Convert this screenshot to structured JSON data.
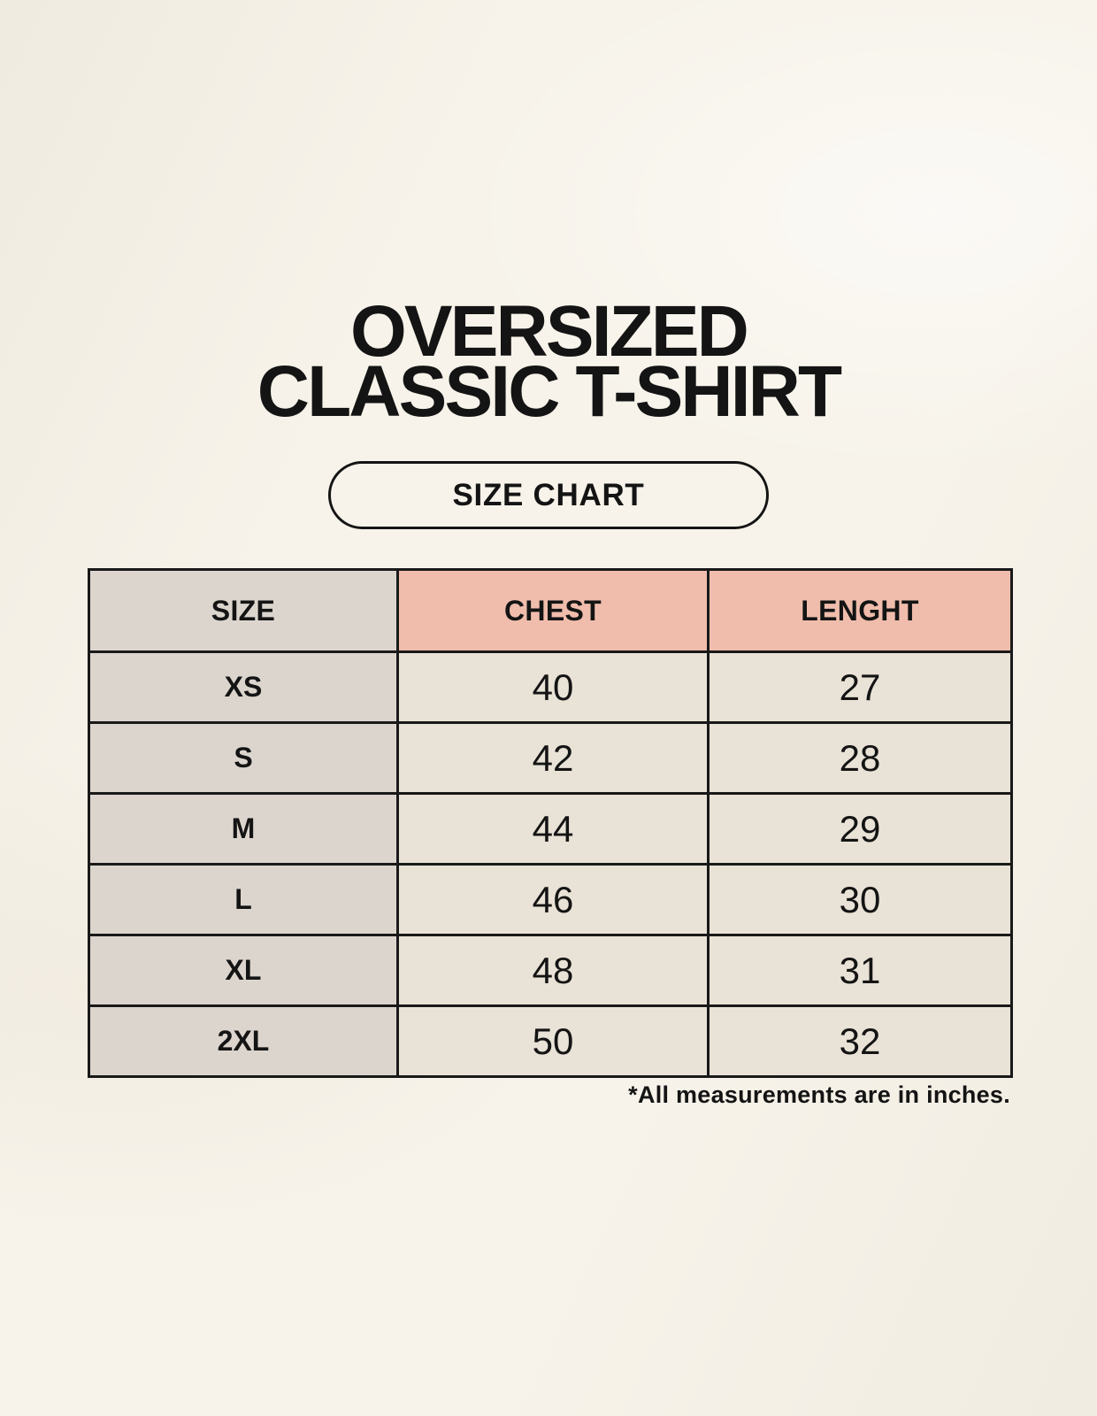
{
  "page": {
    "title_line1": "OVERSIZED",
    "title_line2": "CLASSIC T-SHIRT",
    "badge_label": "SIZE CHART",
    "footnote": "*All measurements are in inches."
  },
  "colors": {
    "page_background": "#f7f3ea",
    "accent_header_cell": "#f0bdac",
    "size_column_cell": "#dcd5ce",
    "value_cell": "#e9e2d6",
    "table_border": "#191919",
    "text": "#141414"
  },
  "table": {
    "headers": [
      "SIZE",
      "CHEST",
      "LENGHT"
    ],
    "rows": [
      [
        "XS",
        "40",
        "27"
      ],
      [
        "S",
        "42",
        "28"
      ],
      [
        "M",
        "44",
        "29"
      ],
      [
        "L",
        "46",
        "30"
      ],
      [
        "XL",
        "48",
        "31"
      ],
      [
        "2XL",
        "50",
        "32"
      ]
    ]
  },
  "chart_data": {
    "type": "table",
    "title": "OVERSIZED CLASSIC T-SHIRT",
    "subtitle": "SIZE CHART",
    "columns": [
      "SIZE",
      "CHEST",
      "LENGHT"
    ],
    "rows": [
      {
        "size": "XS",
        "chest": 40,
        "length": 27
      },
      {
        "size": "S",
        "chest": 42,
        "length": 28
      },
      {
        "size": "M",
        "chest": 44,
        "length": 29
      },
      {
        "size": "L",
        "chest": 46,
        "length": 30
      },
      {
        "size": "XL",
        "chest": 48,
        "length": 31
      },
      {
        "size": "2XL",
        "chest": 50,
        "length": 32
      }
    ],
    "units": "inches",
    "note": "*All measurements are in inches."
  }
}
